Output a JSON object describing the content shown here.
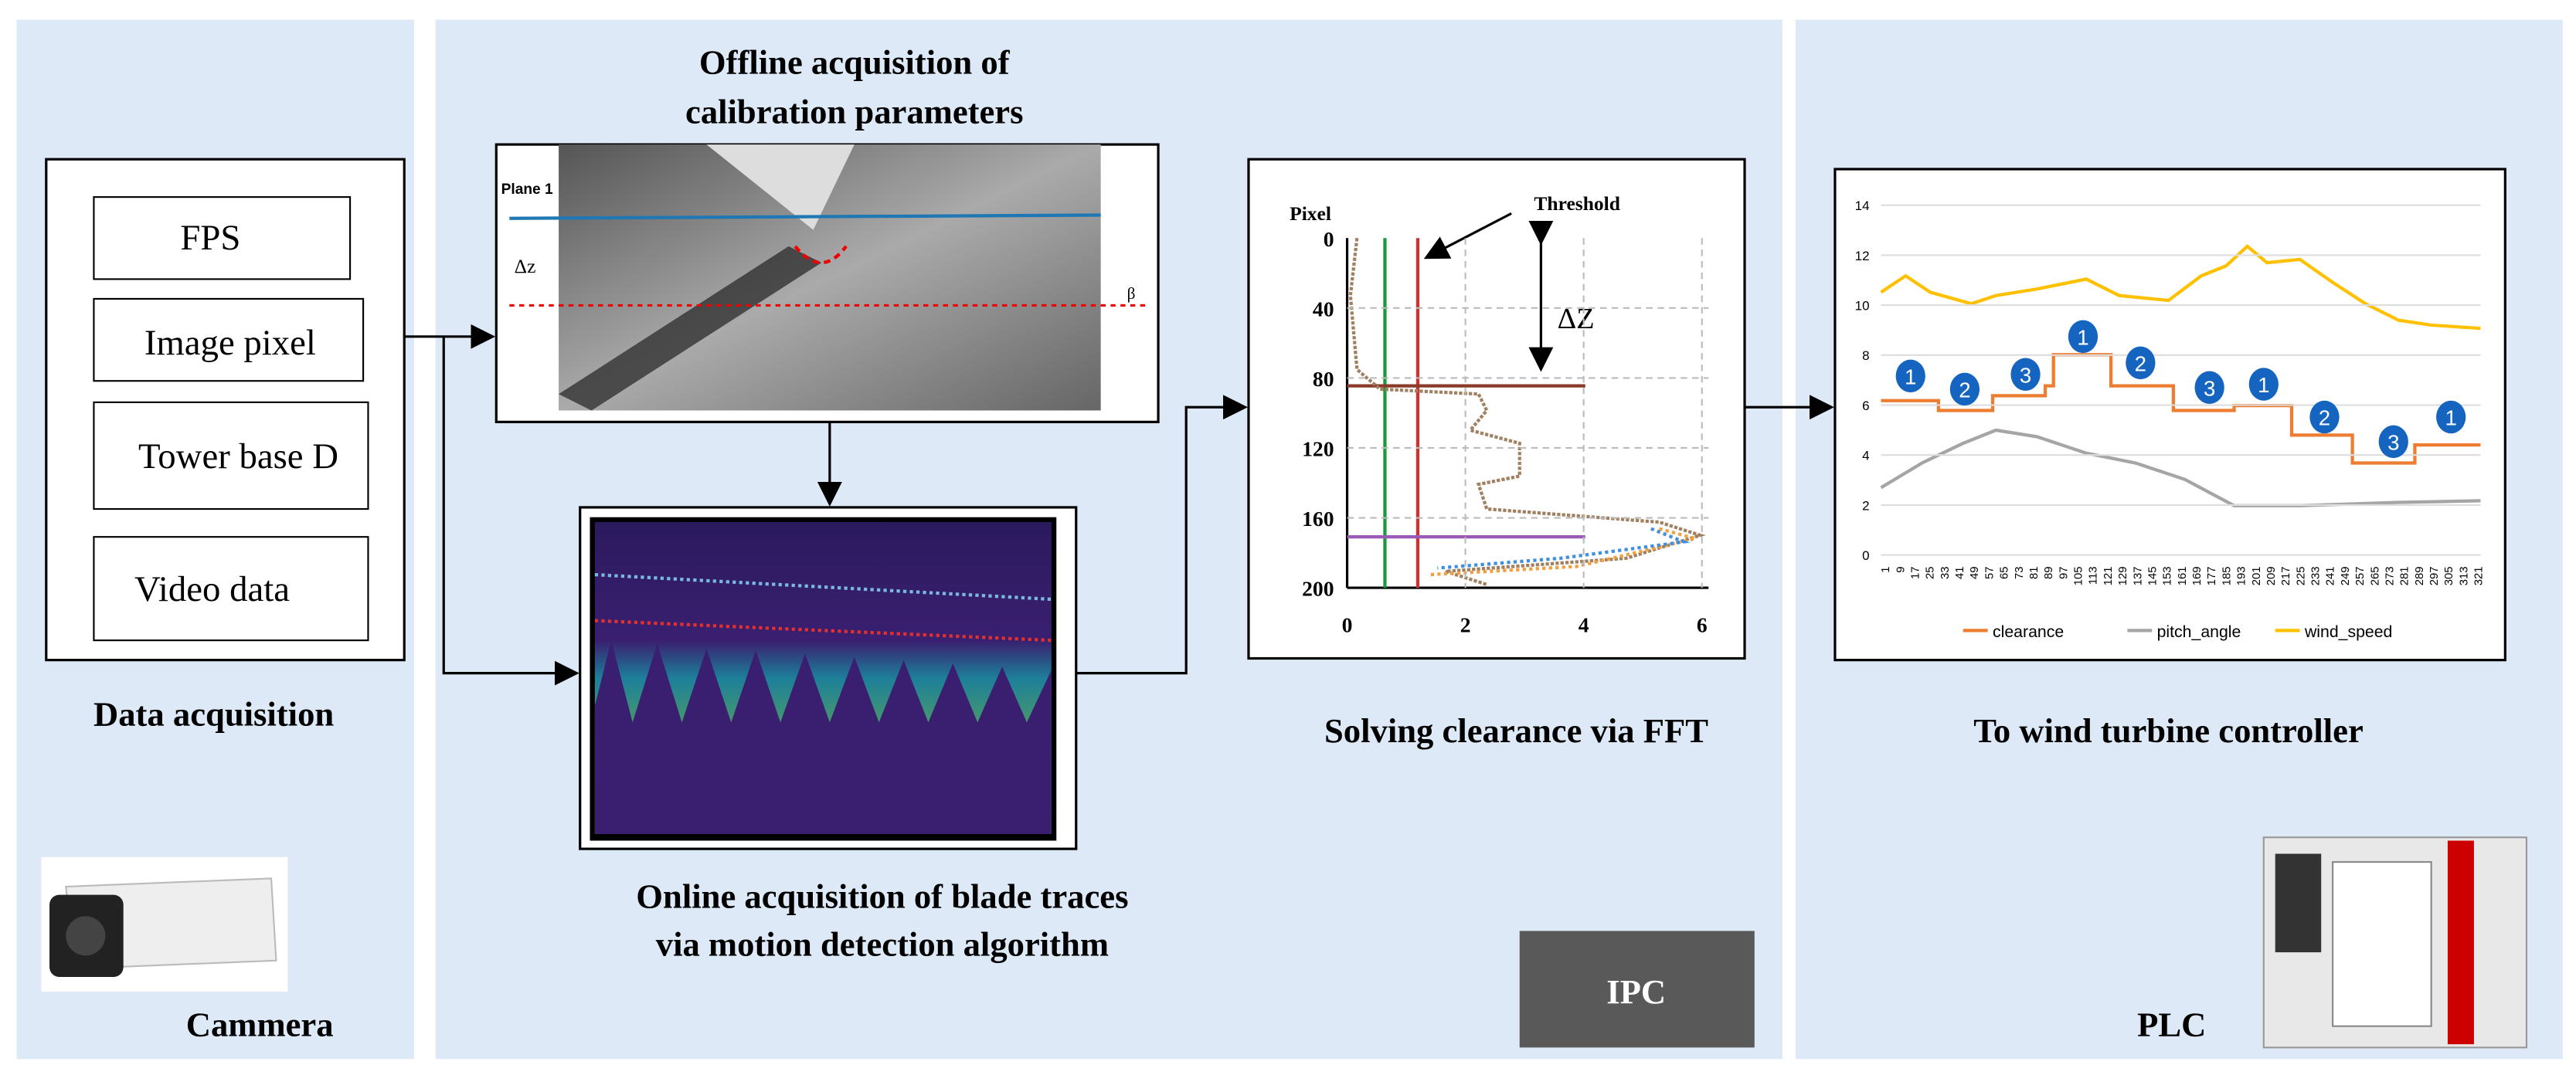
{
  "data_acquisition": {
    "title": "Data acquisition",
    "items": [
      "FPS",
      "Image pixel",
      "Tower base D",
      "Video data"
    ],
    "device": "Cammera"
  },
  "calibration": {
    "title_lines": [
      "Offline acquisition of",
      "calibration parameters"
    ],
    "image_labels": {
      "plane": "Plane 1",
      "dz": "Δz",
      "beta": "β"
    }
  },
  "motion": {
    "title_lines": [
      "Online acquisition of blade traces",
      "via motion detection algorithm"
    ]
  },
  "fft": {
    "title": "Solving clearance via FFT",
    "y_label": "Pixel",
    "annotation": "Threshold",
    "delta": "ΔZ",
    "yticks": [
      "0",
      "40",
      "80",
      "120",
      "160",
      "200"
    ],
    "xticks": [
      "0",
      "2",
      "4",
      "6"
    ]
  },
  "ipc": "IPC",
  "controller": {
    "title": "To wind turbine controller",
    "yticks": [
      "0",
      "2",
      "4",
      "6",
      "8",
      "10",
      "12",
      "14"
    ],
    "xticks": [
      "1",
      "9",
      "17",
      "25",
      "33",
      "41",
      "49",
      "57",
      "65",
      "73",
      "81",
      "89",
      "97",
      "105",
      "113",
      "121",
      "129",
      "137",
      "145",
      "153",
      "161",
      "169",
      "177",
      "185",
      "193",
      "201",
      "209",
      "217",
      "225",
      "233",
      "241",
      "249",
      "257",
      "265",
      "273",
      "281",
      "289",
      "297",
      "305",
      "313",
      "321"
    ],
    "markers": [
      "1",
      "2",
      "3",
      "1",
      "2",
      "3",
      "1",
      "2",
      "3",
      "1"
    ],
    "legend": [
      "clearance",
      "pitch_angle",
      "wind_speed"
    ]
  },
  "plc": "PLC"
}
